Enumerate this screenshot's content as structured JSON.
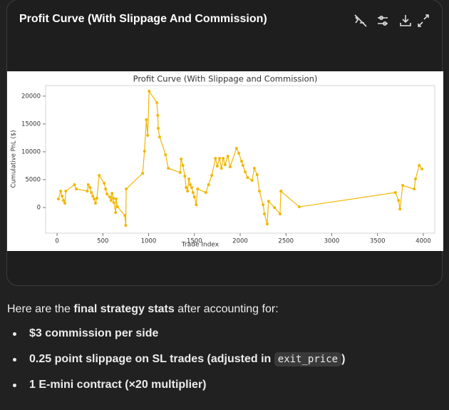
{
  "card": {
    "title": "Profit Curve (With Slippage And Commission)"
  },
  "chart_data": {
    "type": "line",
    "title": "Profit Curve (With Slippage and Commission)",
    "x_label": "Trade Index",
    "y_label": "Cumulative PnL ($)",
    "x": [
      15,
      40,
      55,
      70,
      85,
      95,
      190,
      210,
      330,
      340,
      360,
      375,
      390,
      405,
      420,
      435,
      460,
      515,
      530,
      545,
      575,
      590,
      600,
      615,
      620,
      640,
      645,
      660,
      740,
      750,
      755,
      935,
      955,
      975,
      990,
      1005,
      1090,
      1100,
      1105,
      1120,
      1185,
      1215,
      1345,
      1355,
      1375,
      1395,
      1410,
      1425,
      1440,
      1455,
      1470,
      1485,
      1500,
      1520,
      1535,
      1625,
      1655,
      1690,
      1730,
      1750,
      1775,
      1795,
      1815,
      1835,
      1865,
      1890,
      1960,
      1985,
      2015,
      2030,
      2055,
      2080,
      2130,
      2155,
      2185,
      2210,
      2250,
      2265,
      2295,
      2310,
      2375,
      2435,
      2445,
      2645,
      3695,
      3730,
      3745,
      3775,
      3900,
      3915,
      3955,
      3985
    ],
    "values": [
      1540,
      2950,
      2050,
      1280,
      770,
      2950,
      4100,
      3330,
      2950,
      4100,
      3600,
      2700,
      2050,
      1540,
      770,
      1670,
      5770,
      4360,
      3330,
      2440,
      1920,
      1280,
      2560,
      1670,
      900,
      -900,
      1540,
      130,
      -1410,
      -3200,
      3330,
      6150,
      10130,
      15770,
      12950,
      20900,
      18850,
      16540,
      14230,
      12690,
      9490,
      7050,
      6280,
      8720,
      7560,
      5640,
      3590,
      2950,
      5130,
      4100,
      3590,
      2690,
      1920,
      510,
      3330,
      2690,
      4100,
      5770,
      8850,
      7440,
      8850,
      7050,
      8850,
      7690,
      9230,
      7310,
      10640,
      9740,
      8330,
      7560,
      6410,
      5380,
      4870,
      7050,
      5900,
      2950,
      510,
      -1150,
      -2950,
      1150,
      0,
      -1150,
      2950,
      130,
      2690,
      1280,
      -260,
      3970,
      3330,
      5130,
      7560,
      6920
    ],
    "color": "#f2b705",
    "xlim": [
      -125,
      4125
    ],
    "ylim": [
      -4600,
      21900
    ],
    "xticks": [
      0,
      500,
      1000,
      1500,
      2000,
      2500,
      3000,
      3500,
      4000
    ],
    "yticks": [
      0,
      5000,
      10000,
      15000,
      20000
    ]
  },
  "message": {
    "intro": [
      "Here are the ",
      "final strategy stats",
      " after accounting for:"
    ],
    "bullets": [
      [
        "$3 commission per side"
      ],
      [
        "0.25 point slippage on SL trades (adjusted in ",
        "exit_price",
        ")"
      ],
      [
        "1 E-mini contract (×20 multiplier)"
      ]
    ]
  }
}
